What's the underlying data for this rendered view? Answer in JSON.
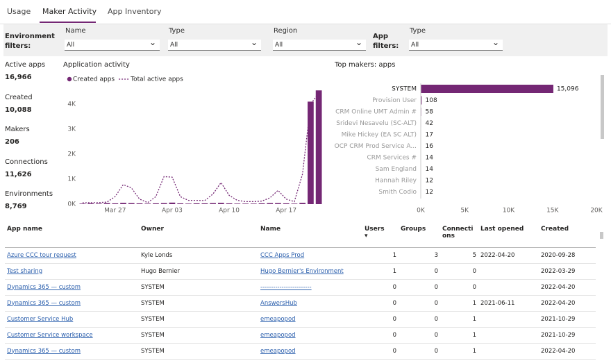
{
  "tabs": {
    "items": [
      "Usage",
      "Maker Activity",
      "App Inventory"
    ],
    "active": 1
  },
  "filters": {
    "environment_label": "Environment filters:",
    "app_label": "App filters:",
    "fields": [
      {
        "label": "Name",
        "value": "All"
      },
      {
        "label": "Type",
        "value": "All"
      },
      {
        "label": "Region",
        "value": "All"
      },
      {
        "label": "Type",
        "value": "All"
      }
    ]
  },
  "kpis": [
    {
      "label": "Active apps",
      "value": "16,966"
    },
    {
      "label": "Created",
      "value": "10,088"
    },
    {
      "label": "Makers",
      "value": "206"
    },
    {
      "label": "Connections",
      "value": "11,626"
    },
    {
      "label": "Environments",
      "value": "8,769"
    }
  ],
  "activity_chart": {
    "type": "bar-line",
    "title": "Application activity",
    "categories": [
      null,
      null,
      null,
      null,
      "Mar 27",
      null,
      null,
      null,
      null,
      null,
      null,
      "Apr 03",
      null,
      null,
      null,
      null,
      null,
      null,
      "Apr 10",
      null,
      null,
      null,
      null,
      null,
      null,
      "Apr 17",
      null,
      null,
      null,
      null
    ],
    "series": [
      {
        "name": "Created apps",
        "type": "bar",
        "color": "#742774",
        "values": [
          20,
          30,
          20,
          40,
          30,
          50,
          40,
          30,
          20,
          30,
          40,
          60,
          30,
          20,
          30,
          30,
          40,
          50,
          30,
          20,
          20,
          20,
          30,
          40,
          40,
          30,
          20,
          50,
          4100,
          4550
        ]
      },
      {
        "name": "Total active apps",
        "type": "line",
        "color": "#742774",
        "values": [
          50,
          60,
          60,
          80,
          300,
          780,
          650,
          200,
          60,
          300,
          1100,
          1080,
          300,
          150,
          150,
          140,
          400,
          860,
          350,
          150,
          100,
          100,
          120,
          250,
          550,
          200,
          100,
          1200,
          4000,
          4450
        ]
      }
    ],
    "ylim": [
      0,
      4800
    ],
    "yticks": [
      {
        "value": 0,
        "label": "0K"
      },
      {
        "value": 1000,
        "label": "1K"
      },
      {
        "value": 2000,
        "label": "2K"
      },
      {
        "value": 3000,
        "label": "3K"
      },
      {
        "value": 4000,
        "label": "4K"
      }
    ]
  },
  "makers_chart": {
    "type": "hbar",
    "title": "Top makers: apps",
    "color": "#742774",
    "categories": [
      "SYSTEM",
      "Provision User",
      "CRM Online UMT Admin #",
      "Sridevi Nesavelu (SC-ALT)",
      "Mike Hickey (EA SC ALT)",
      "OCP CRM Prod Service A...",
      "CRM Services #",
      "Sam England",
      "Hannah Riley",
      "Smith Codio"
    ],
    "values": [
      15096,
      108,
      58,
      42,
      17,
      16,
      14,
      14,
      12,
      12
    ],
    "value_labels": [
      "15,096",
      "108",
      "58",
      "42",
      "17",
      "16",
      "14",
      "14",
      "12",
      "12"
    ],
    "xlim": [
      0,
      20000
    ],
    "xticks": [
      {
        "value": 0,
        "label": "0K"
      },
      {
        "value": 5000,
        "label": "5K"
      },
      {
        "value": 10000,
        "label": "10K"
      },
      {
        "value": 15000,
        "label": "15K"
      },
      {
        "value": 20000,
        "label": "20K"
      }
    ]
  },
  "table": {
    "columns": [
      "App name",
      "Owner",
      "Name",
      "Users",
      "Groups",
      "Connections",
      "Last opened",
      "Created"
    ],
    "rows": [
      [
        "Azure CCC tour request",
        "Kyle Londs",
        "CCC Apps Prod",
        1,
        3,
        5,
        "2022-04-20",
        "2020-09-28"
      ],
      [
        "Test sharing",
        "Hugo Bernier",
        "Hugo Bernier's Environment",
        1,
        0,
        0,
        null,
        "2022-03-29"
      ],
      [
        "Dynamics 365 — custom",
        "SYSTEM",
        "------------------------",
        0,
        0,
        0,
        null,
        "2022-04-20"
      ],
      [
        "Dynamics 365 — custom",
        "SYSTEM",
        "AnswersHub",
        0,
        0,
        1,
        "2021-06-11",
        "2022-04-20"
      ],
      [
        "Customer Service Hub",
        "SYSTEM",
        "emeapopod",
        0,
        0,
        1,
        null,
        "2021-10-29"
      ],
      [
        "Customer Service workspace",
        "SYSTEM",
        "emeapopod",
        0,
        0,
        1,
        null,
        "2021-10-29"
      ],
      [
        "Dynamics 365 — custom",
        "SYSTEM",
        "emeapopod",
        0,
        0,
        1,
        null,
        "2022-04-20"
      ]
    ]
  }
}
